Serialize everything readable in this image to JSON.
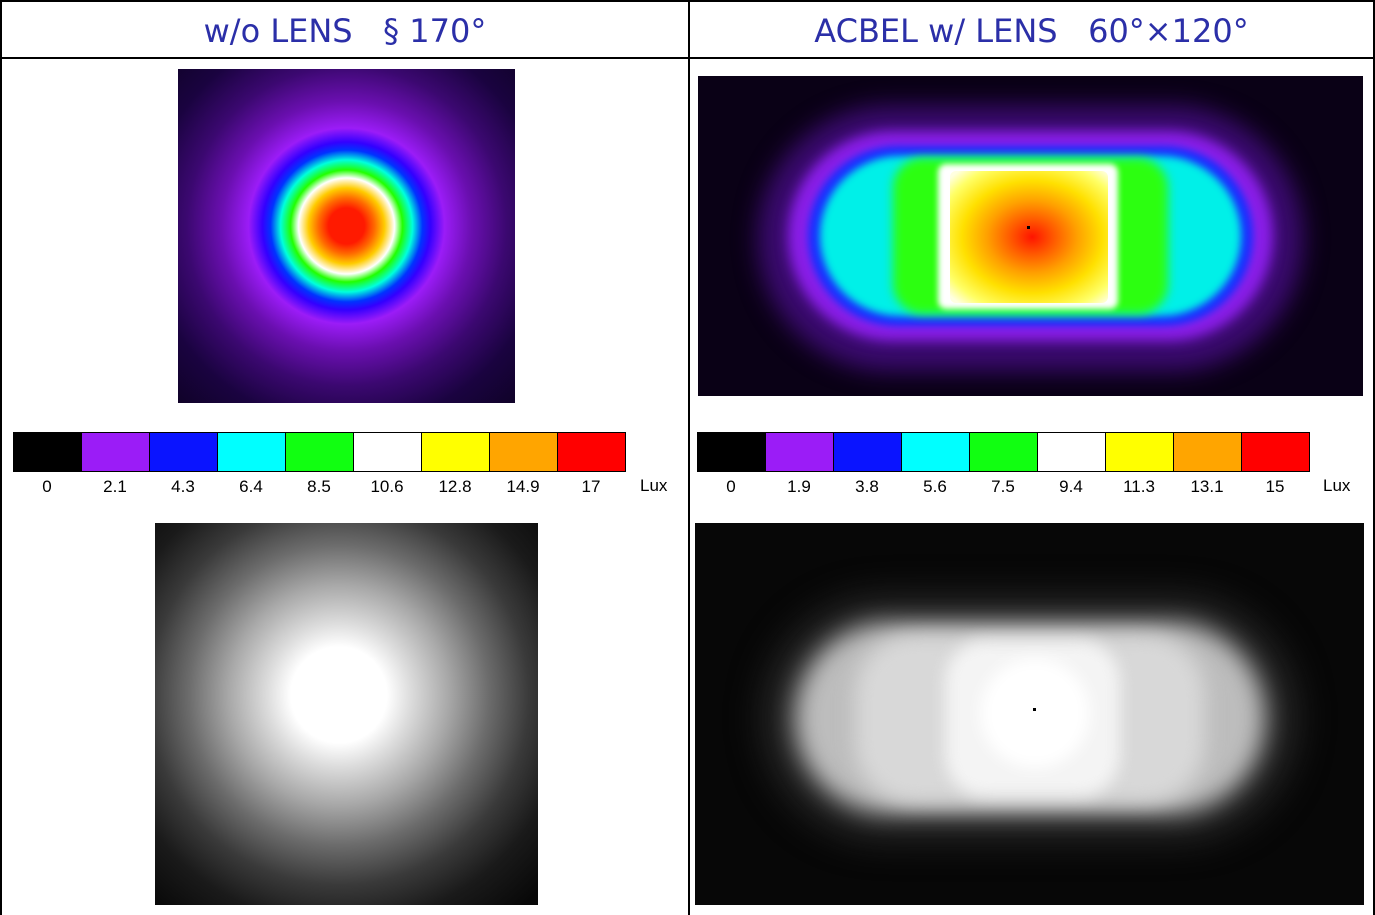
{
  "titles": {
    "left": "w/o LENS   § 170°",
    "right": "ACBEL w/ LENS   60°×120°"
  },
  "chart_data": [
    {
      "type": "heatmap",
      "title": "w/o LENS   § 170°",
      "colorbar": {
        "unit": "Lux",
        "ticks": [
          "0",
          "2.1",
          "4.3",
          "6.4",
          "8.5",
          "10.6",
          "12.8",
          "14.9",
          "17"
        ],
        "colors": [
          "#000000",
          "#9b1cf7",
          "#0a14ff",
          "#00ffff",
          "#11ff11",
          "#ffffff",
          "#ffff00",
          "#ffa500",
          "#ff0000"
        ]
      },
      "shape": "circular",
      "peak_value": 17,
      "views": [
        "false-color",
        "grayscale"
      ]
    },
    {
      "type": "heatmap",
      "title": "ACBEL w/ LENS   60°×120°",
      "colorbar": {
        "unit": "Lux",
        "ticks": [
          "0",
          "1.9",
          "3.8",
          "5.6",
          "7.5",
          "9.4",
          "11.3",
          "13.1",
          "15"
        ],
        "colors": [
          "#000000",
          "#9b1cf7",
          "#0a14ff",
          "#00ffff",
          "#11ff11",
          "#ffffff",
          "#ffff00",
          "#ffa500",
          "#ff0000"
        ]
      },
      "shape": "rounded-rectangular",
      "peak_value": 15,
      "views": [
        "false-color",
        "grayscale"
      ]
    }
  ]
}
